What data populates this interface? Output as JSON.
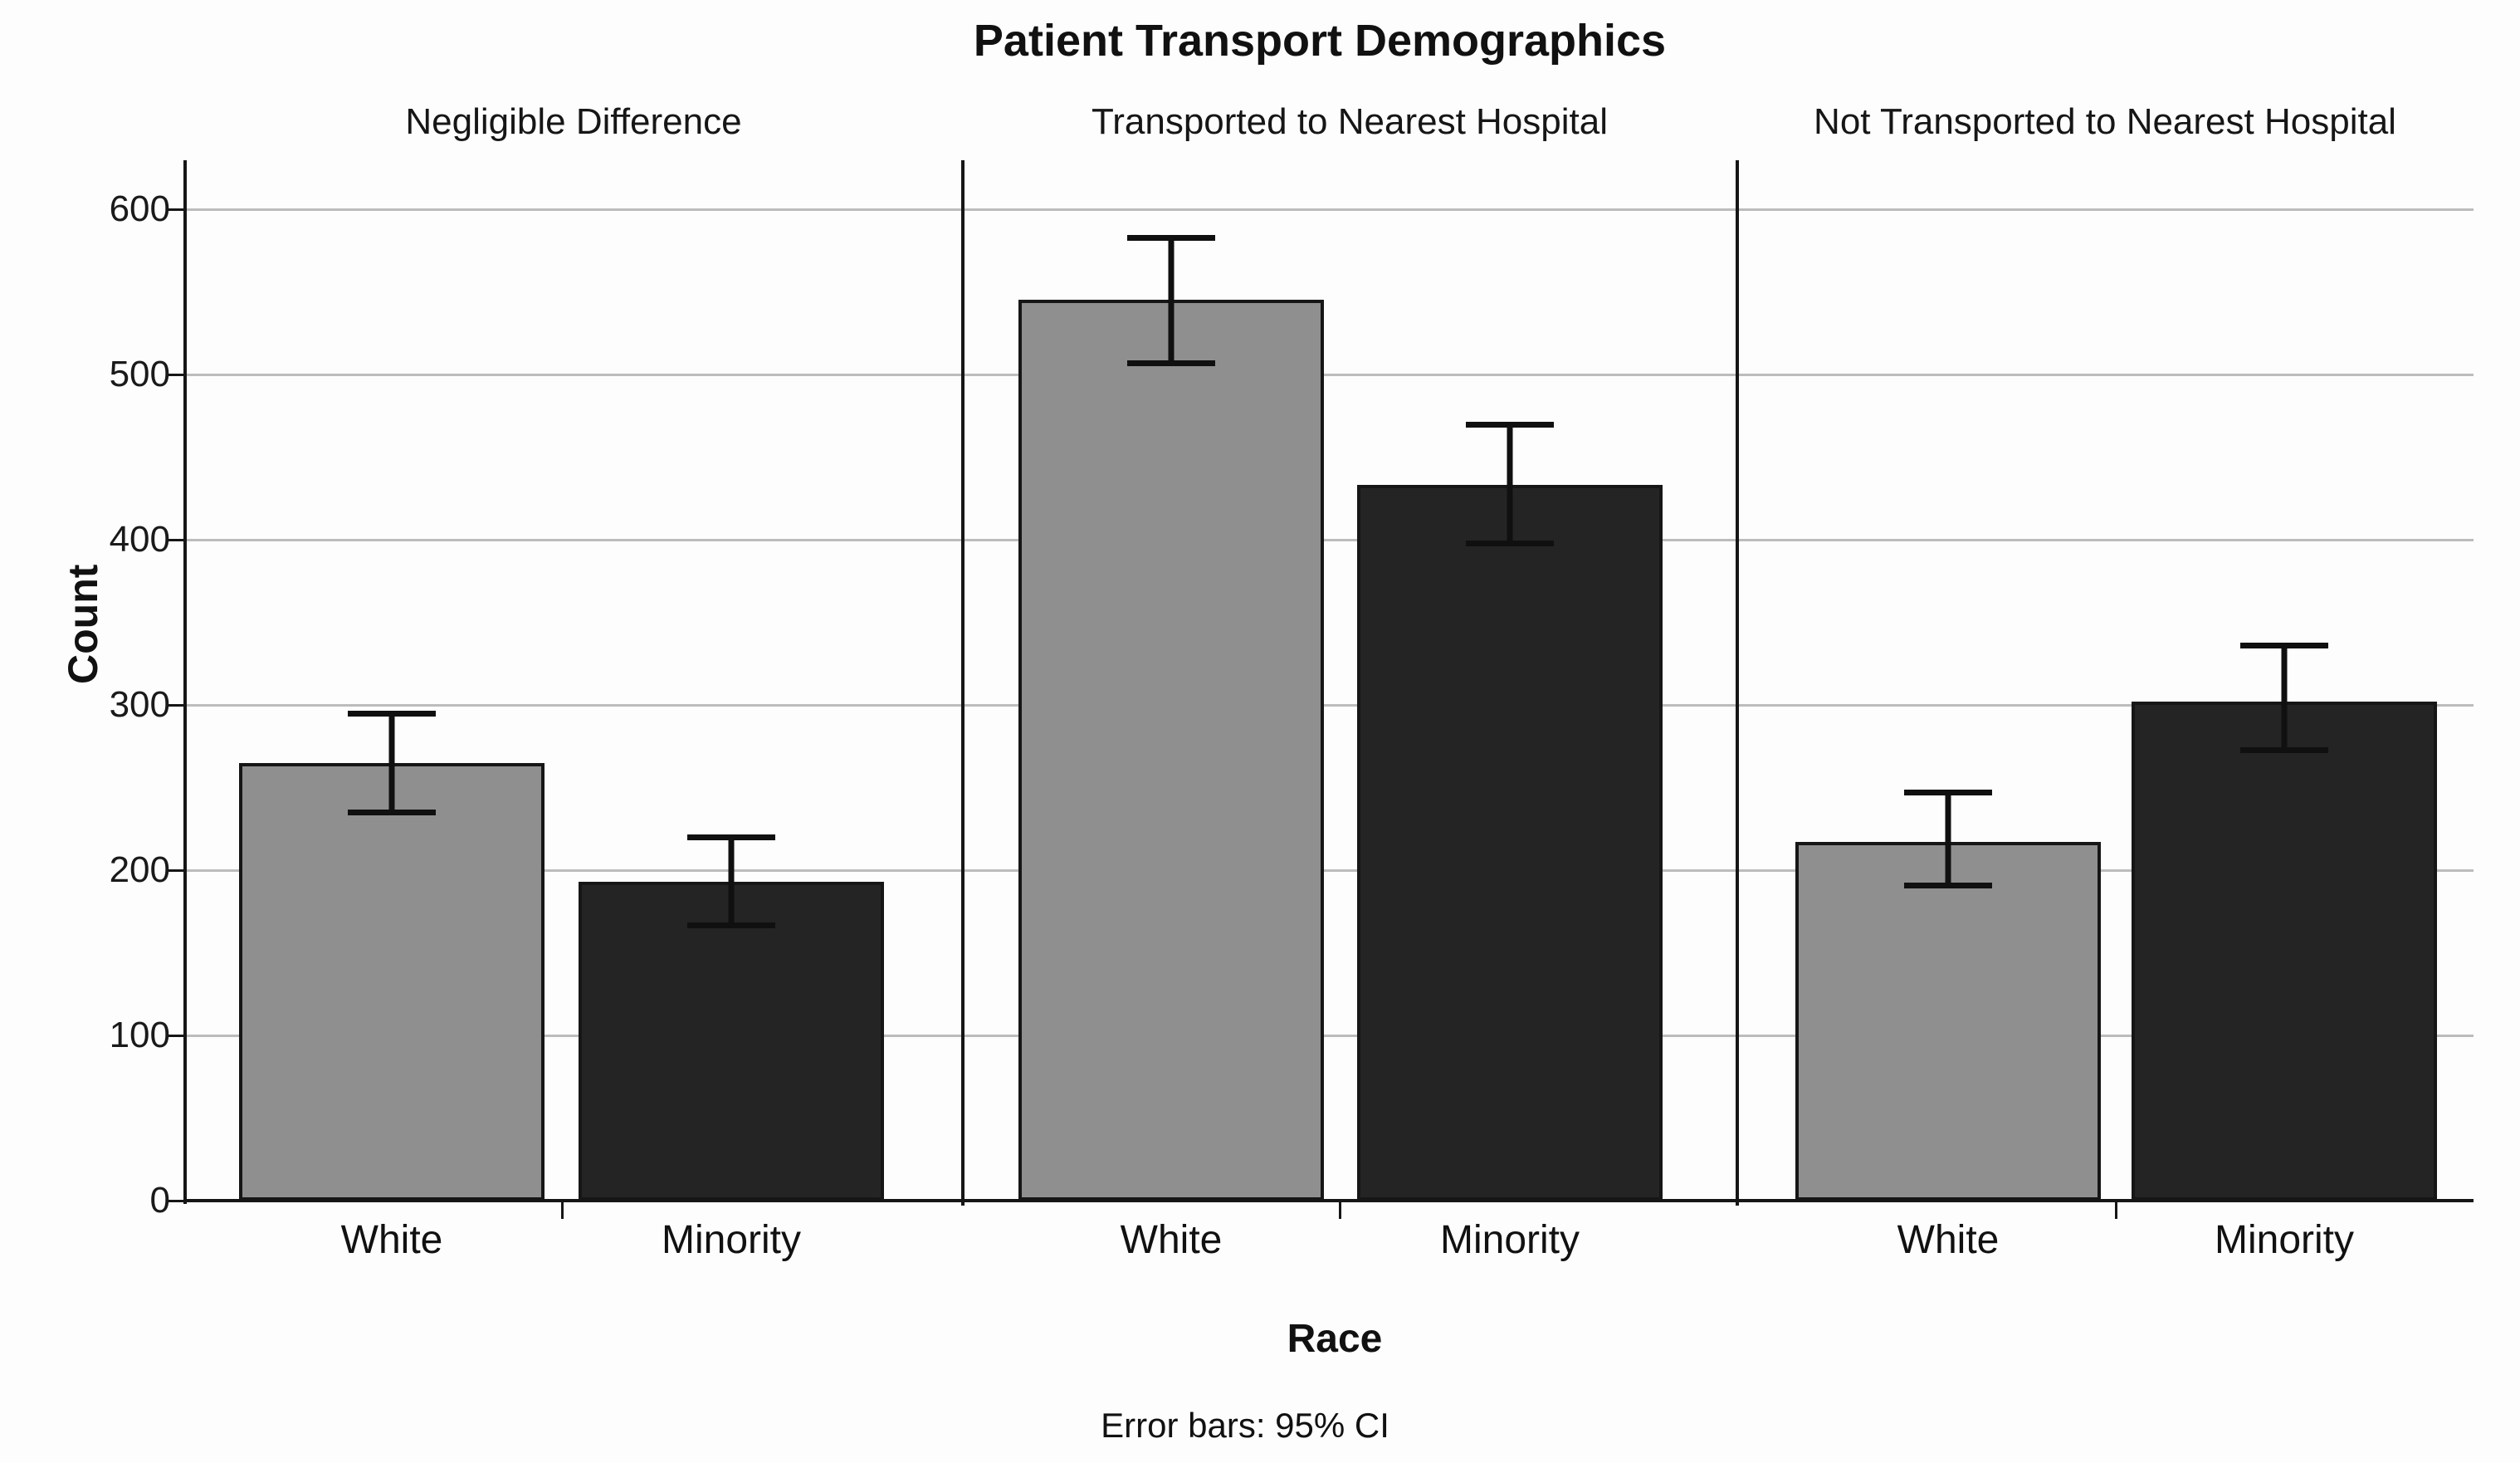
{
  "chart_data": {
    "type": "bar",
    "title": "Patient Transport Demographics",
    "ylabel": "Count",
    "xlabel": "Race",
    "footnote": "Error bars: 95% CI",
    "categories": [
      "White",
      "Minority"
    ],
    "yticks": [
      0,
      100,
      200,
      300,
      400,
      500,
      600
    ],
    "ylim": [
      0,
      630
    ],
    "grid": true,
    "legend": "none",
    "panels": [
      {
        "label": "Negligible Difference",
        "series": [
          {
            "category": "White",
            "value": 265,
            "ci_low": 235,
            "ci_high": 295
          },
          {
            "category": "Minority",
            "value": 193,
            "ci_low": 167,
            "ci_high": 220
          }
        ]
      },
      {
        "label": "Transported to Nearest Hospital",
        "series": [
          {
            "category": "White",
            "value": 545,
            "ci_low": 507,
            "ci_high": 583
          },
          {
            "category": "Minority",
            "value": 433,
            "ci_low": 398,
            "ci_high": 470
          }
        ]
      },
      {
        "label": "Not Transported to Nearest Hospital",
        "series": [
          {
            "category": "White",
            "value": 217,
            "ci_low": 191,
            "ci_high": 247
          },
          {
            "category": "Minority",
            "value": 302,
            "ci_low": 273,
            "ci_high": 336
          }
        ]
      }
    ],
    "colors": {
      "white_bar": "#8f8f8f",
      "minority_bar": "#242424",
      "bar_border": "#161616",
      "gridline": "#bcbcbc",
      "axis": "#161616",
      "error_bar": "#101010",
      "background": "#fdfdfd",
      "text": "#111111"
    }
  }
}
